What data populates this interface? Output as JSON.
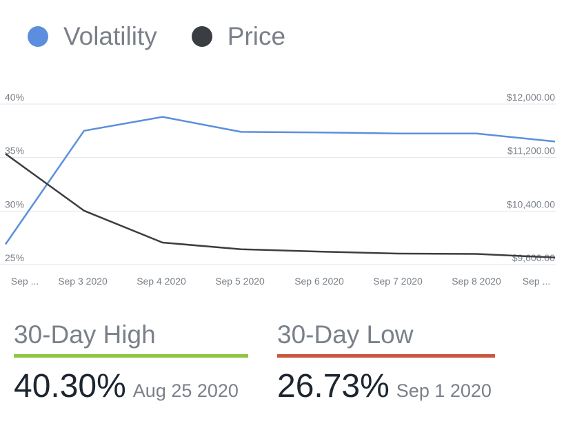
{
  "legend": {
    "volatility_label": "Volatility",
    "price_label": "Price"
  },
  "colors": {
    "volatility": "#5b8fdd",
    "price": "#3a3d42",
    "high_bar": "#8cc63f",
    "low_bar": "#c8553d",
    "grid": "#e3e6ea",
    "tick_text": "#7a8089"
  },
  "chart_data": {
    "type": "line",
    "x_tick_labels": [
      "Sep ...",
      "Sep 3 2020",
      "Sep 4 2020",
      "Sep 5 2020",
      "Sep 6 2020",
      "Sep 7 2020",
      "Sep 8 2020",
      "Sep ..."
    ],
    "series": [
      {
        "name": "Volatility",
        "axis": "left",
        "values": [
          26.9,
          37.5,
          38.8,
          37.4,
          37.35,
          37.25,
          37.25,
          36.5
        ]
      },
      {
        "name": "Price",
        "axis": "right",
        "values": [
          11255,
          10405,
          9930,
          9830,
          9795,
          9765,
          9760,
          9705
        ]
      }
    ],
    "y_left": {
      "ticks": [
        "40%",
        "35%",
        "30%",
        "25%"
      ],
      "tick_values": [
        40,
        35,
        30,
        25
      ],
      "range": [
        25,
        40
      ]
    },
    "y_right": {
      "ticks": [
        "$12,000.00",
        "$11,200.00",
        "$10,400.00",
        "$9,600.00"
      ],
      "tick_values": [
        12000,
        11200,
        10400,
        9600
      ],
      "range": [
        9600,
        12000
      ]
    },
    "grid": true,
    "legend_position": "top-left"
  },
  "stats": {
    "high": {
      "title": "30-Day High",
      "value": "40.30%",
      "date": "Aug 25 2020"
    },
    "low": {
      "title": "30-Day Low",
      "value": "26.73%",
      "date": "Sep 1 2020"
    }
  }
}
